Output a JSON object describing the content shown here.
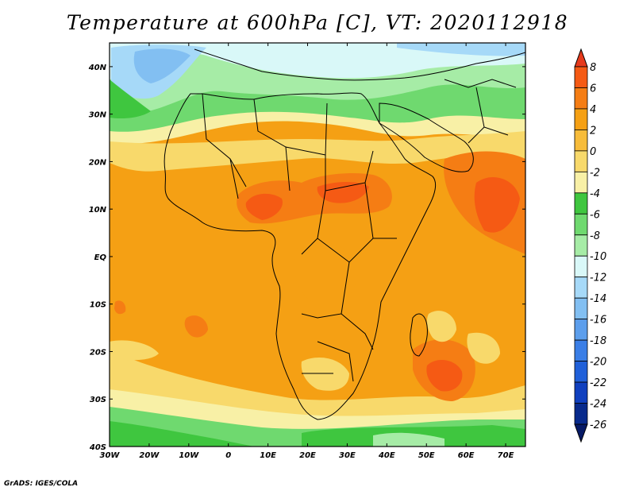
{
  "title": "Temperature at 600hPa [C], VT: 2020112918",
  "credit": "GrADS: IGES/COLA",
  "map": {
    "lon_range": [
      -30,
      75
    ],
    "lat_range": [
      -40,
      45
    ],
    "lon_ticks": [
      {
        "value": -30,
        "label": "30W"
      },
      {
        "value": -20,
        "label": "20W"
      },
      {
        "value": -10,
        "label": "10W"
      },
      {
        "value": 0,
        "label": "0"
      },
      {
        "value": 10,
        "label": "10E"
      },
      {
        "value": 20,
        "label": "20E"
      },
      {
        "value": 30,
        "label": "30E"
      },
      {
        "value": 40,
        "label": "40E"
      },
      {
        "value": 50,
        "label": "50E"
      },
      {
        "value": 60,
        "label": "60E"
      },
      {
        "value": 70,
        "label": "70E"
      }
    ],
    "lat_ticks": [
      {
        "value": 40,
        "label": "40N"
      },
      {
        "value": 30,
        "label": "30N"
      },
      {
        "value": 20,
        "label": "20N"
      },
      {
        "value": 10,
        "label": "10N"
      },
      {
        "value": 0,
        "label": "EQ"
      },
      {
        "value": -10,
        "label": "10S"
      },
      {
        "value": -20,
        "label": "20S"
      },
      {
        "value": -30,
        "label": "30S"
      },
      {
        "value": -40,
        "label": "40S"
      }
    ]
  },
  "colorbar": {
    "levels": [
      "8",
      "6",
      "4",
      "2",
      "0",
      "-2",
      "-4",
      "-6",
      "-8",
      "-10",
      "-12",
      "-14",
      "-16",
      "-18",
      "-20",
      "-22",
      "-24",
      "-26"
    ],
    "colors": [
      "#e63a1c",
      "#f55a14",
      "#f57d14",
      "#f5a014",
      "#f7bc3a",
      "#f8d96b",
      "#f8f0a6",
      "#3fc63f",
      "#6fd96f",
      "#a6eca6",
      "#d9f8f8",
      "#a6d9f8",
      "#82bff2",
      "#5c9eec",
      "#3a7ee6",
      "#2060d9",
      "#1040bf",
      "#082a8c",
      "#061a66"
    ]
  }
}
